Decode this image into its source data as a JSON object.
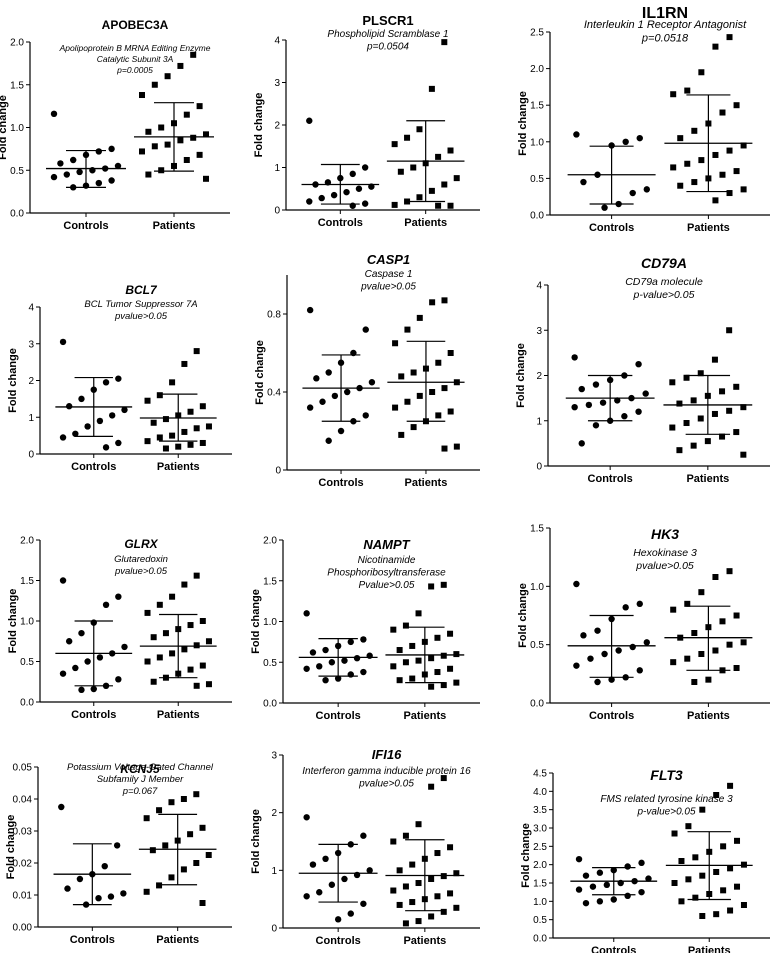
{
  "chart_data": [
    {
      "type": "scatter",
      "title": "APOBEC3A",
      "title_italic": false,
      "subtitle": [
        "Apolipoprotein B MRNA Editing Enzyme",
        "Catalytic Subunit 3A",
        "p=0.0005"
      ],
      "ylabel": "Fold change",
      "ylim": [
        0,
        2
      ],
      "yticks": [
        0,
        0.5,
        1.0,
        1.5,
        2.0
      ],
      "ytick_labels": [
        "0.0",
        "0.5",
        "1.0",
        "1.5",
        "2.0"
      ],
      "categories": [
        "Controls",
        "Patients"
      ],
      "series": [
        {
          "name": "Controls",
          "marker": "circle",
          "mean": 0.52,
          "sd_low": 0.3,
          "sd_high": 0.73,
          "values": [
            1.16,
            0.75,
            0.72,
            0.68,
            0.62,
            0.58,
            0.55,
            0.52,
            0.5,
            0.48,
            0.45,
            0.42,
            0.38,
            0.35,
            0.32,
            0.3
          ]
        },
        {
          "name": "Patients",
          "marker": "square",
          "mean": 0.89,
          "sd_low": 0.49,
          "sd_high": 1.29,
          "values": [
            1.85,
            1.72,
            1.6,
            1.5,
            1.38,
            1.25,
            1.15,
            1.05,
            1.0,
            0.95,
            0.92,
            0.88,
            0.85,
            0.8,
            0.78,
            0.72,
            0.68,
            0.62,
            0.55,
            0.5,
            0.45,
            0.4
          ]
        }
      ]
    },
    {
      "type": "scatter",
      "title": "PLSCR1",
      "title_italic": false,
      "subtitle": [
        "Phospholipid Scramblase 1",
        "p=0.0504"
      ],
      "ylabel": "Fold change",
      "ylim": [
        0,
        4
      ],
      "yticks": [
        0,
        1,
        2,
        3,
        4
      ],
      "ytick_labels": [
        "0",
        "1",
        "2",
        "3",
        "4"
      ],
      "categories": [
        "Controls",
        "Patients"
      ],
      "series": [
        {
          "name": "Controls",
          "marker": "circle",
          "mean": 0.6,
          "sd_low": 0.14,
          "sd_high": 1.07,
          "values": [
            2.1,
            1.0,
            0.85,
            0.75,
            0.65,
            0.6,
            0.55,
            0.5,
            0.42,
            0.35,
            0.28,
            0.2,
            0.15,
            0.1
          ]
        },
        {
          "name": "Patients",
          "marker": "square",
          "mean": 1.15,
          "sd_low": 0.2,
          "sd_high": 2.1,
          "values": [
            3.95,
            2.85,
            1.9,
            1.7,
            1.55,
            1.4,
            1.25,
            1.1,
            1.0,
            0.9,
            0.75,
            0.6,
            0.45,
            0.3,
            0.2,
            0.12,
            0.1,
            0.1
          ]
        }
      ]
    },
    {
      "type": "scatter",
      "title": "IL1RN",
      "title_italic": false,
      "subtitle": [
        "Interleukin 1 Receptor Antagonist",
        "p=0.0518"
      ],
      "ylabel": "Fold change",
      "ylim": [
        0,
        2.5
      ],
      "yticks": [
        0,
        0.5,
        1.0,
        1.5,
        2.0,
        2.5
      ],
      "ytick_labels": [
        "0.0",
        "0.5",
        "1.0",
        "1.5",
        "2.0",
        "2.5"
      ],
      "categories": [
        "Controls",
        "Patients"
      ],
      "series": [
        {
          "name": "Controls",
          "marker": "circle",
          "mean": 0.55,
          "sd_low": 0.15,
          "sd_high": 0.94,
          "values": [
            1.1,
            1.05,
            1.0,
            0.95,
            0.55,
            0.45,
            0.35,
            0.3,
            0.15,
            0.1
          ]
        },
        {
          "name": "Patients",
          "marker": "square",
          "mean": 0.98,
          "sd_low": 0.32,
          "sd_high": 1.64,
          "values": [
            2.43,
            2.3,
            1.95,
            1.7,
            1.65,
            1.5,
            1.4,
            1.25,
            1.15,
            1.05,
            0.95,
            0.88,
            0.82,
            0.75,
            0.7,
            0.65,
            0.6,
            0.55,
            0.5,
            0.45,
            0.4,
            0.35,
            0.3,
            0.2
          ]
        }
      ]
    },
    {
      "type": "scatter",
      "title": "BCL7",
      "title_italic": true,
      "subtitle": [
        "BCL Tumor Suppressor 7A",
        "pvalue>0.05"
      ],
      "ylabel": "Fold change",
      "ylim": [
        0,
        4
      ],
      "yticks": [
        0,
        1,
        2,
        3,
        4
      ],
      "ytick_labels": [
        "0",
        "1",
        "2",
        "3",
        "4"
      ],
      "categories": [
        "Controls",
        "Patients"
      ],
      "series": [
        {
          "name": "Controls",
          "marker": "circle",
          "mean": 1.28,
          "sd_low": 0.48,
          "sd_high": 2.08,
          "values": [
            3.05,
            2.05,
            1.95,
            1.75,
            1.5,
            1.3,
            1.2,
            1.05,
            0.9,
            0.75,
            0.55,
            0.45,
            0.3,
            0.18
          ]
        },
        {
          "name": "Patients",
          "marker": "square",
          "mean": 0.98,
          "sd_low": 0.35,
          "sd_high": 1.63,
          "values": [
            2.8,
            2.45,
            1.95,
            1.6,
            1.45,
            1.3,
            1.15,
            1.05,
            0.95,
            0.85,
            0.75,
            0.7,
            0.6,
            0.5,
            0.45,
            0.35,
            0.3,
            0.25,
            0.2,
            0.15
          ]
        }
      ]
    },
    {
      "type": "scatter",
      "title": "CASP1",
      "title_italic": true,
      "subtitle": [
        "Caspase 1",
        "pvalue>0.05"
      ],
      "ylabel": "Fold change",
      "ylim": [
        0,
        1.0
      ],
      "yticks": [
        0,
        0.4,
        0.8
      ],
      "ytick_labels": [
        "0",
        "0.4",
        "0.8"
      ],
      "categories": [
        "Controls",
        "Patients"
      ],
      "series": [
        {
          "name": "Controls",
          "marker": "circle",
          "mean": 0.42,
          "sd_low": 0.25,
          "sd_high": 0.59,
          "values": [
            0.82,
            0.72,
            0.6,
            0.55,
            0.5,
            0.47,
            0.45,
            0.42,
            0.4,
            0.38,
            0.35,
            0.32,
            0.28,
            0.25,
            0.2,
            0.15
          ]
        },
        {
          "name": "Patients",
          "marker": "square",
          "mean": 0.45,
          "sd_low": 0.25,
          "sd_high": 0.66,
          "values": [
            0.87,
            0.86,
            0.78,
            0.72,
            0.65,
            0.6,
            0.55,
            0.52,
            0.5,
            0.48,
            0.45,
            0.42,
            0.4,
            0.38,
            0.35,
            0.32,
            0.3,
            0.28,
            0.25,
            0.22,
            0.18,
            0.12,
            0.11
          ]
        }
      ]
    },
    {
      "type": "scatter",
      "title": "CD79A",
      "title_italic": true,
      "subtitle": [
        "CD79a molecule",
        "p-value>0.05"
      ],
      "ylabel": "Fold change",
      "ylim": [
        0,
        4
      ],
      "yticks": [
        0,
        1,
        2,
        3,
        4
      ],
      "ytick_labels": [
        "0",
        "1",
        "2",
        "3",
        "4"
      ],
      "categories": [
        "Controls",
        "Patients"
      ],
      "series": [
        {
          "name": "Controls",
          "marker": "circle",
          "mean": 1.5,
          "sd_low": 1.0,
          "sd_high": 2.0,
          "values": [
            2.4,
            2.25,
            2.0,
            1.9,
            1.8,
            1.7,
            1.6,
            1.5,
            1.45,
            1.4,
            1.35,
            1.3,
            1.2,
            1.1,
            1.0,
            0.9,
            0.5
          ]
        },
        {
          "name": "Patients",
          "marker": "square",
          "mean": 1.35,
          "sd_low": 0.7,
          "sd_high": 2.0,
          "values": [
            3.0,
            2.35,
            2.05,
            1.95,
            1.85,
            1.75,
            1.65,
            1.55,
            1.45,
            1.38,
            1.3,
            1.22,
            1.15,
            1.05,
            0.95,
            0.85,
            0.75,
            0.65,
            0.55,
            0.45,
            0.35,
            0.25
          ]
        }
      ]
    },
    {
      "type": "scatter",
      "title": "GLRX",
      "title_italic": true,
      "subtitle": [
        "Glutaredoxin",
        "pvalue>0.05"
      ],
      "ylabel": "Fold change",
      "ylim": [
        0,
        2
      ],
      "yticks": [
        0,
        0.5,
        1.0,
        1.5,
        2.0
      ],
      "ytick_labels": [
        "0.0",
        "0.5",
        "1.0",
        "1.5",
        "2.0"
      ],
      "categories": [
        "Controls",
        "Patients"
      ],
      "series": [
        {
          "name": "Controls",
          "marker": "circle",
          "mean": 0.6,
          "sd_low": 0.2,
          "sd_high": 1.0,
          "values": [
            1.5,
            1.3,
            1.2,
            0.98,
            0.85,
            0.75,
            0.68,
            0.6,
            0.55,
            0.5,
            0.42,
            0.35,
            0.28,
            0.2,
            0.16,
            0.15
          ]
        },
        {
          "name": "Patients",
          "marker": "square",
          "mean": 0.69,
          "sd_low": 0.3,
          "sd_high": 1.08,
          "values": [
            1.56,
            1.45,
            1.3,
            1.2,
            1.1,
            1.0,
            0.95,
            0.9,
            0.85,
            0.8,
            0.75,
            0.7,
            0.65,
            0.6,
            0.55,
            0.5,
            0.45,
            0.4,
            0.35,
            0.3,
            0.25,
            0.22,
            0.2
          ]
        }
      ]
    },
    {
      "type": "scatter",
      "title": "NAMPT",
      "title_italic": true,
      "subtitle": [
        "Nicotinamide",
        "Phosphoribosyltransferase",
        "Pvalue>0.05"
      ],
      "ylabel": "Fold change",
      "ylim": [
        0,
        2
      ],
      "yticks": [
        0,
        0.5,
        1.0,
        1.5,
        2.0
      ],
      "ytick_labels": [
        "0.0",
        "0.5",
        "1.0",
        "1.5",
        "2.0"
      ],
      "categories": [
        "Controls",
        "Patients"
      ],
      "series": [
        {
          "name": "Controls",
          "marker": "circle",
          "mean": 0.56,
          "sd_low": 0.33,
          "sd_high": 0.79,
          "values": [
            1.1,
            0.78,
            0.75,
            0.7,
            0.65,
            0.62,
            0.58,
            0.55,
            0.52,
            0.5,
            0.45,
            0.42,
            0.38,
            0.35,
            0.3,
            0.28
          ]
        },
        {
          "name": "Patients",
          "marker": "square",
          "mean": 0.59,
          "sd_low": 0.25,
          "sd_high": 0.93,
          "values": [
            1.45,
            1.43,
            1.1,
            0.95,
            0.9,
            0.85,
            0.8,
            0.75,
            0.7,
            0.65,
            0.6,
            0.58,
            0.55,
            0.52,
            0.5,
            0.45,
            0.42,
            0.38,
            0.35,
            0.3,
            0.28,
            0.25,
            0.22,
            0.2
          ]
        }
      ]
    },
    {
      "type": "scatter",
      "title": "HK3",
      "title_italic": true,
      "subtitle": [
        "Hexokinase 3",
        "pvalue>0.05"
      ],
      "ylabel": "Fold change",
      "ylim": [
        0,
        1.5
      ],
      "yticks": [
        0,
        0.5,
        1.0,
        1.5
      ],
      "ytick_labels": [
        "0.0",
        "0.5",
        "1.0",
        "1.5"
      ],
      "categories": [
        "Controls",
        "Patients"
      ],
      "series": [
        {
          "name": "Controls",
          "marker": "circle",
          "mean": 0.49,
          "sd_low": 0.22,
          "sd_high": 0.75,
          "values": [
            1.02,
            0.85,
            0.82,
            0.72,
            0.62,
            0.58,
            0.52,
            0.48,
            0.45,
            0.42,
            0.38,
            0.32,
            0.28,
            0.22,
            0.2,
            0.18
          ]
        },
        {
          "name": "Patients",
          "marker": "square",
          "mean": 0.56,
          "sd_low": 0.28,
          "sd_high": 0.83,
          "values": [
            1.13,
            1.08,
            0.95,
            0.85,
            0.8,
            0.75,
            0.7,
            0.65,
            0.6,
            0.56,
            0.52,
            0.5,
            0.45,
            0.42,
            0.38,
            0.35,
            0.3,
            0.28,
            0.2,
            0.18
          ]
        }
      ]
    },
    {
      "type": "scatter",
      "title": "KCNJ5",
      "title_italic": true,
      "subtitle": [
        "Potassium Voltage-Gated Channel",
        "Subfamily J Member",
        "p=0.067"
      ],
      "ylabel": "Fold change",
      "ylim": [
        0,
        0.05
      ],
      "yticks": [
        0,
        0.01,
        0.02,
        0.03,
        0.04,
        0.05
      ],
      "ytick_labels": [
        "0.00",
        "0.01",
        "0.02",
        "0.03",
        "0.04",
        "0.05"
      ],
      "categories": [
        "Controls",
        "Patients"
      ],
      "series": [
        {
          "name": "Controls",
          "marker": "circle",
          "mean": 0.0165,
          "sd_low": 0.007,
          "sd_high": 0.026,
          "values": [
            0.0375,
            0.0255,
            0.019,
            0.0165,
            0.015,
            0.012,
            0.0105,
            0.0095,
            0.009,
            0.007
          ]
        },
        {
          "name": "Patients",
          "marker": "square",
          "mean": 0.0243,
          "sd_low": 0.0132,
          "sd_high": 0.0352,
          "values": [
            0.0415,
            0.04,
            0.039,
            0.0365,
            0.034,
            0.031,
            0.029,
            0.027,
            0.0255,
            0.024,
            0.0225,
            0.02,
            0.018,
            0.0155,
            0.013,
            0.011,
            0.0075
          ]
        }
      ]
    },
    {
      "type": "scatter",
      "title": "IFI16",
      "title_italic": true,
      "subtitle": [
        "Interferon gamma inducible protein 16",
        "pvalue>0.05"
      ],
      "ylabel": "Fold change",
      "ylim": [
        0,
        3
      ],
      "yticks": [
        0,
        1,
        2,
        3
      ],
      "ytick_labels": [
        "0",
        "1",
        "2",
        "3"
      ],
      "categories": [
        "Controls",
        "Patients"
      ],
      "series": [
        {
          "name": "Controls",
          "marker": "circle",
          "mean": 0.95,
          "sd_low": 0.45,
          "sd_high": 1.45,
          "values": [
            1.92,
            1.6,
            1.45,
            1.3,
            1.2,
            1.1,
            1.0,
            0.92,
            0.85,
            0.75,
            0.62,
            0.55,
            0.42,
            0.25,
            0.15
          ]
        },
        {
          "name": "Patients",
          "marker": "square",
          "mean": 0.91,
          "sd_low": 0.3,
          "sd_high": 1.53,
          "values": [
            2.6,
            2.45,
            1.8,
            1.6,
            1.5,
            1.4,
            1.3,
            1.2,
            1.1,
            1.0,
            0.95,
            0.9,
            0.85,
            0.78,
            0.72,
            0.65,
            0.6,
            0.55,
            0.5,
            0.45,
            0.4,
            0.35,
            0.28,
            0.2,
            0.12,
            0.08
          ]
        }
      ]
    },
    {
      "type": "scatter",
      "title": "FLT3",
      "title_italic": true,
      "subtitle": [
        "FMS related tyrosine kinase 3",
        "p-value>0.05"
      ],
      "ylabel": "Fold change",
      "ylim": [
        0,
        4.5
      ],
      "yticks": [
        0,
        0.5,
        1.0,
        1.5,
        2.0,
        2.5,
        3.0,
        3.5,
        4.0,
        4.5
      ],
      "ytick_labels": [
        "0.0",
        "0.5",
        "1.0",
        "1.5",
        "2.0",
        "2.5",
        "3.0",
        "3.5",
        "4.0",
        "4.5"
      ],
      "categories": [
        "Controls",
        "Patients"
      ],
      "series": [
        {
          "name": "Controls",
          "marker": "circle",
          "mean": 1.55,
          "sd_low": 1.18,
          "sd_high": 1.92,
          "values": [
            2.15,
            2.05,
            1.95,
            1.85,
            1.78,
            1.7,
            1.62,
            1.55,
            1.5,
            1.45,
            1.4,
            1.32,
            1.25,
            1.15,
            1.05,
            1.0,
            0.95
          ]
        },
        {
          "name": "Patients",
          "marker": "square",
          "mean": 1.98,
          "sd_low": 1.05,
          "sd_high": 2.9,
          "values": [
            4.15,
            3.9,
            3.5,
            3.05,
            2.85,
            2.65,
            2.5,
            2.35,
            2.2,
            2.1,
            2.0,
            1.9,
            1.8,
            1.7,
            1.6,
            1.5,
            1.4,
            1.3,
            1.2,
            1.1,
            1.0,
            0.9,
            0.75,
            0.65,
            0.6
          ]
        }
      ]
    }
  ]
}
